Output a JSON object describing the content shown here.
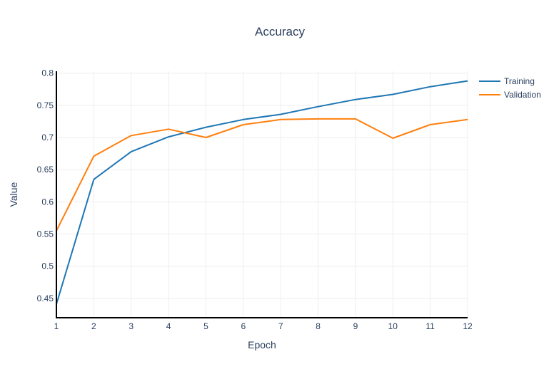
{
  "chart_data": {
    "type": "line",
    "title": "Accuracy",
    "xlabel": "Epoch",
    "ylabel": "Value",
    "x": [
      1,
      2,
      3,
      4,
      5,
      6,
      7,
      8,
      9,
      10,
      11,
      12
    ],
    "xlim": [
      1,
      12
    ],
    "ylim": [
      0.42,
      0.803
    ],
    "yticks": [
      0.45,
      0.5,
      0.55,
      0.6,
      0.65,
      0.7,
      0.75,
      0.8
    ],
    "ytick_labels": [
      "0.45",
      "0.5",
      "0.55",
      "0.6",
      "0.65",
      "0.7",
      "0.75",
      "0.8"
    ],
    "grid": true,
    "legend_position": "top-right",
    "series": [
      {
        "name": "Training",
        "color": "#1f77b4",
        "values": [
          0.441,
          0.635,
          0.678,
          0.701,
          0.716,
          0.728,
          0.736,
          0.748,
          0.759,
          0.767,
          0.779,
          0.788
        ]
      },
      {
        "name": "Validation",
        "color": "#ff7f0e",
        "values": [
          0.555,
          0.671,
          0.703,
          0.713,
          0.7,
          0.72,
          0.728,
          0.729,
          0.729,
          0.699,
          0.72,
          0.728
        ]
      }
    ]
  }
}
